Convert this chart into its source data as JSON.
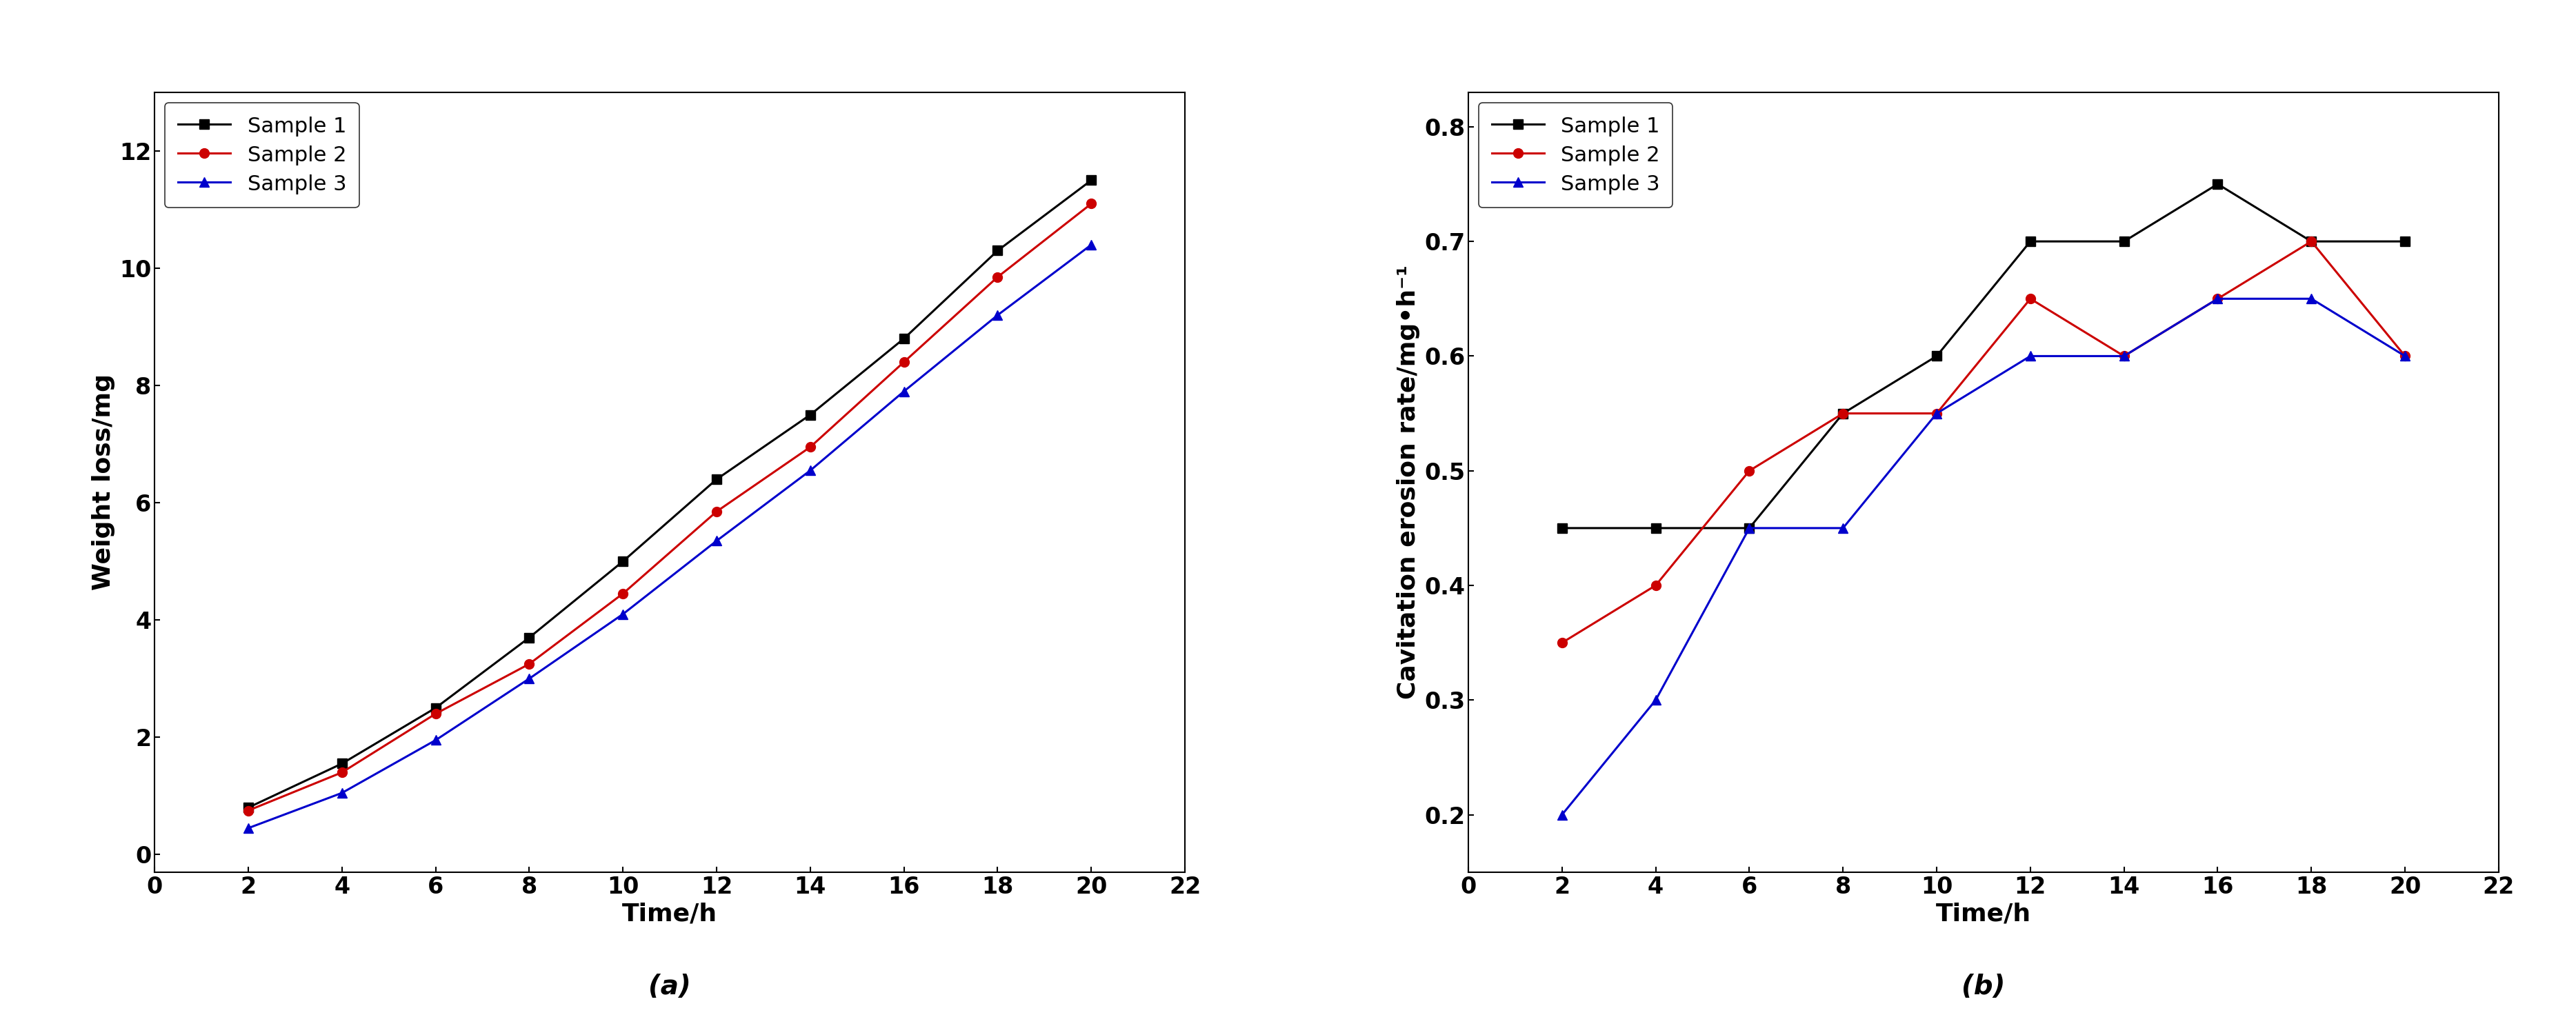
{
  "time": [
    2,
    4,
    6,
    8,
    10,
    12,
    14,
    16,
    18,
    20
  ],
  "weight_loss_s1": [
    0.8,
    1.55,
    2.5,
    3.7,
    5.0,
    6.4,
    7.5,
    8.8,
    10.3,
    11.5
  ],
  "weight_loss_s2": [
    0.75,
    1.4,
    2.4,
    3.25,
    4.45,
    5.85,
    6.95,
    8.4,
    9.85,
    11.1
  ],
  "weight_loss_s3": [
    0.45,
    1.05,
    1.95,
    3.0,
    4.1,
    5.35,
    6.55,
    7.9,
    9.2,
    10.4
  ],
  "erosion_rate_s1": [
    0.45,
    0.45,
    0.45,
    0.55,
    0.6,
    0.7,
    0.7,
    0.75,
    0.7,
    0.7
  ],
  "erosion_rate_s2": [
    0.35,
    0.4,
    0.5,
    0.55,
    0.55,
    0.65,
    0.6,
    0.65,
    0.7,
    0.6
  ],
  "erosion_rate_s3": [
    0.2,
    0.3,
    0.45,
    0.45,
    0.55,
    0.6,
    0.6,
    0.65,
    0.65,
    0.6
  ],
  "color_s1": "#000000",
  "color_s2": "#cc0000",
  "color_s3": "#0000cc",
  "ylabel_a": "Weight loss/mg",
  "ylabel_b": "Cavitation erosion rate/mg•h⁻¹",
  "xlabel": "Time/h",
  "label_a": "(a)",
  "label_b": "(b)",
  "legend_labels": [
    "Sample 1",
    "Sample 2",
    "Sample 3"
  ],
  "xlim": [
    1,
    22
  ],
  "xticks": [
    0,
    2,
    4,
    6,
    8,
    10,
    12,
    14,
    16,
    18,
    20,
    22
  ],
  "ylim_a": [
    -0.3,
    13
  ],
  "yticks_a": [
    0,
    2,
    4,
    6,
    8,
    10,
    12
  ],
  "ylim_b": [
    0.15,
    0.83
  ],
  "yticks_b": [
    0.2,
    0.3,
    0.4,
    0.5,
    0.6,
    0.7,
    0.8
  ],
  "label_fontsize": 26,
  "tick_fontsize": 24,
  "legend_fontsize": 22,
  "caption_fontsize": 28,
  "linewidth": 2.2,
  "markersize": 10
}
